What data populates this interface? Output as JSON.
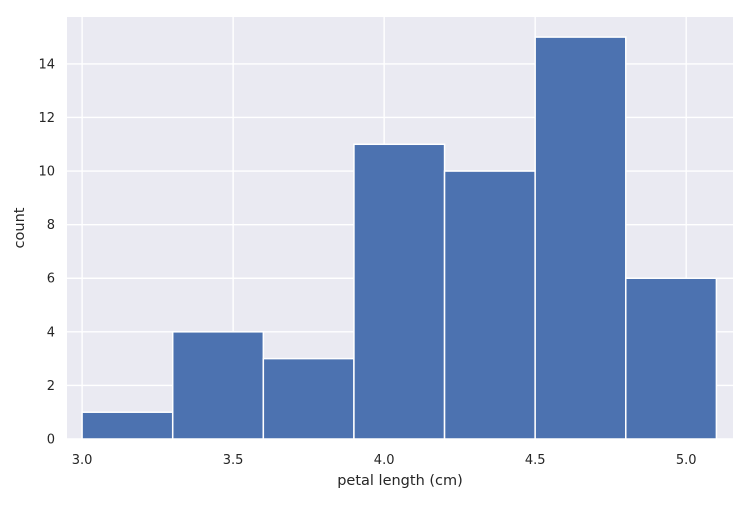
{
  "chart_data": {
    "type": "bar",
    "histogram": true,
    "bins": [
      {
        "x0": 3.0,
        "x1": 3.3,
        "count": 1
      },
      {
        "x0": 3.3,
        "x1": 3.6,
        "count": 4
      },
      {
        "x0": 3.6,
        "x1": 3.9,
        "count": 3
      },
      {
        "x0": 3.9,
        "x1": 4.2,
        "count": 11
      },
      {
        "x0": 4.2,
        "x1": 4.5,
        "count": 10
      },
      {
        "x0": 4.5,
        "x1": 4.8,
        "count": 15
      },
      {
        "x0": 4.8,
        "x1": 5.1,
        "count": 6
      }
    ],
    "xlabel": "petal length (cm)",
    "ylabel": "count",
    "xlim": [
      2.95,
      5.155
    ],
    "ylim": [
      0,
      15.75
    ],
    "xticks": [
      {
        "value": 3.0,
        "label": "3.0"
      },
      {
        "value": 3.5,
        "label": "3.5"
      },
      {
        "value": 4.0,
        "label": "4.0"
      },
      {
        "value": 4.5,
        "label": "4.5"
      },
      {
        "value": 5.0,
        "label": "5.0"
      }
    ],
    "yticks": [
      {
        "value": 0,
        "label": "0"
      },
      {
        "value": 2,
        "label": "2"
      },
      {
        "value": 4,
        "label": "4"
      },
      {
        "value": 6,
        "label": "6"
      },
      {
        "value": 8,
        "label": "8"
      },
      {
        "value": 10,
        "label": "10"
      },
      {
        "value": 12,
        "label": "12"
      },
      {
        "value": 14,
        "label": "14"
      }
    ],
    "grid": true,
    "colors": {
      "bar": "#4c72b0",
      "bar_edge": "#ffffff",
      "plot_background": "#eaeaf2",
      "grid": "#ffffff",
      "text": "#262626"
    }
  }
}
